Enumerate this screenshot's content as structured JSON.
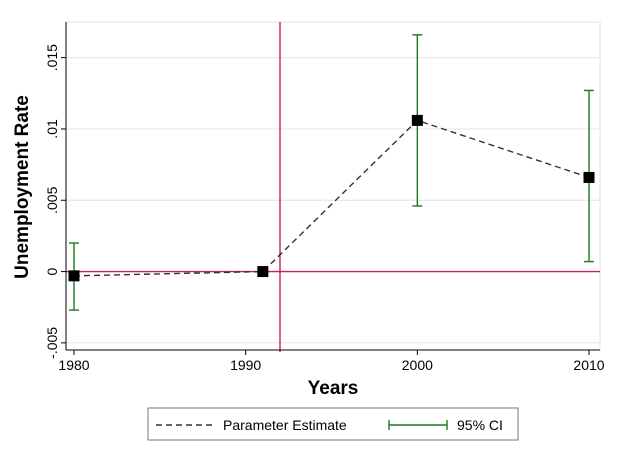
{
  "chart_data": {
    "type": "line",
    "xlabel": "Years",
    "ylabel": "Unemployment Rate",
    "xlim": [
      1980,
      2010
    ],
    "ylim": [
      -0.0055,
      0.0175
    ],
    "x_ticks": [
      1980,
      1990,
      2000,
      2010
    ],
    "x_tick_labels": [
      "1980",
      "1990",
      "2000",
      "2010"
    ],
    "y_ticks": [
      -0.005,
      0,
      0.005,
      0.01,
      0.015
    ],
    "y_tick_labels": [
      "-.005",
      "0",
      ".005",
      ".01",
      ".015"
    ],
    "grid": true,
    "reference_lines": {
      "vertical_x": 1992,
      "horizontal_y": 0
    },
    "series": [
      {
        "name": "Parameter Estimate",
        "x": [
          1980,
          1991,
          2000,
          2010
        ],
        "values": [
          -0.0003,
          0.0,
          0.0106,
          0.0066
        ]
      },
      {
        "name": "95% CI",
        "x": [
          1980,
          2000,
          2010
        ],
        "lower": [
          -0.0027,
          0.0046,
          0.0007
        ],
        "upper": [
          0.002,
          0.0166,
          0.0127
        ]
      }
    ],
    "legend": {
      "position": "bottom",
      "entries": [
        "Parameter Estimate",
        "95% CI"
      ]
    },
    "colors": {
      "estimate": "#000000",
      "ci": "#1a7a1a",
      "reference": "#c8205a",
      "grid": "#e4e4e4"
    }
  }
}
